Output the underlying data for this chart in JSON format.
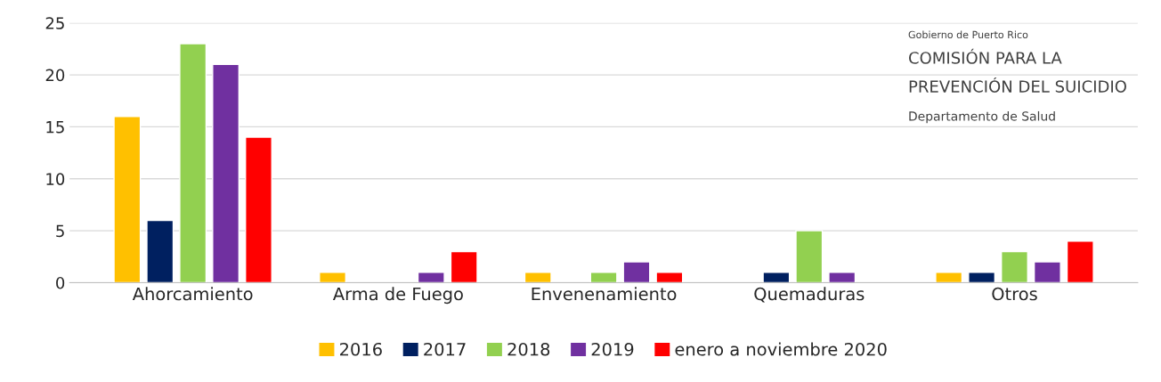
{
  "chart_data": {
    "type": "bar",
    "categories": [
      "Ahorcamiento",
      "Arma de Fuego",
      "Envenenamiento",
      "Quemaduras",
      "Otros"
    ],
    "series": [
      {
        "name": "2016",
        "color": "#ffc000",
        "values": [
          16,
          1,
          1,
          null,
          1
        ]
      },
      {
        "name": "2017",
        "color": "#002060",
        "values": [
          6,
          null,
          null,
          1,
          1
        ]
      },
      {
        "name": "2018",
        "color": "#92d050",
        "values": [
          23,
          null,
          1,
          5,
          3
        ]
      },
      {
        "name": "2019",
        "color": "#7030a0",
        "values": [
          21,
          1,
          2,
          1,
          2
        ]
      },
      {
        "name": "enero a noviembre 2020",
        "color": "#ff0000",
        "values": [
          14,
          3,
          1,
          null,
          4
        ]
      }
    ],
    "ylim": [
      0,
      25
    ],
    "yticks": [
      0,
      5,
      10,
      15,
      20,
      25
    ],
    "grid": "y",
    "legend": "bottom",
    "annotations": [
      "Gobierno de Puerto Rico",
      "COMISIÓN PARA LA",
      "PREVENCIÓN DEL SUICIDIO",
      "Departamento de Salud"
    ]
  }
}
